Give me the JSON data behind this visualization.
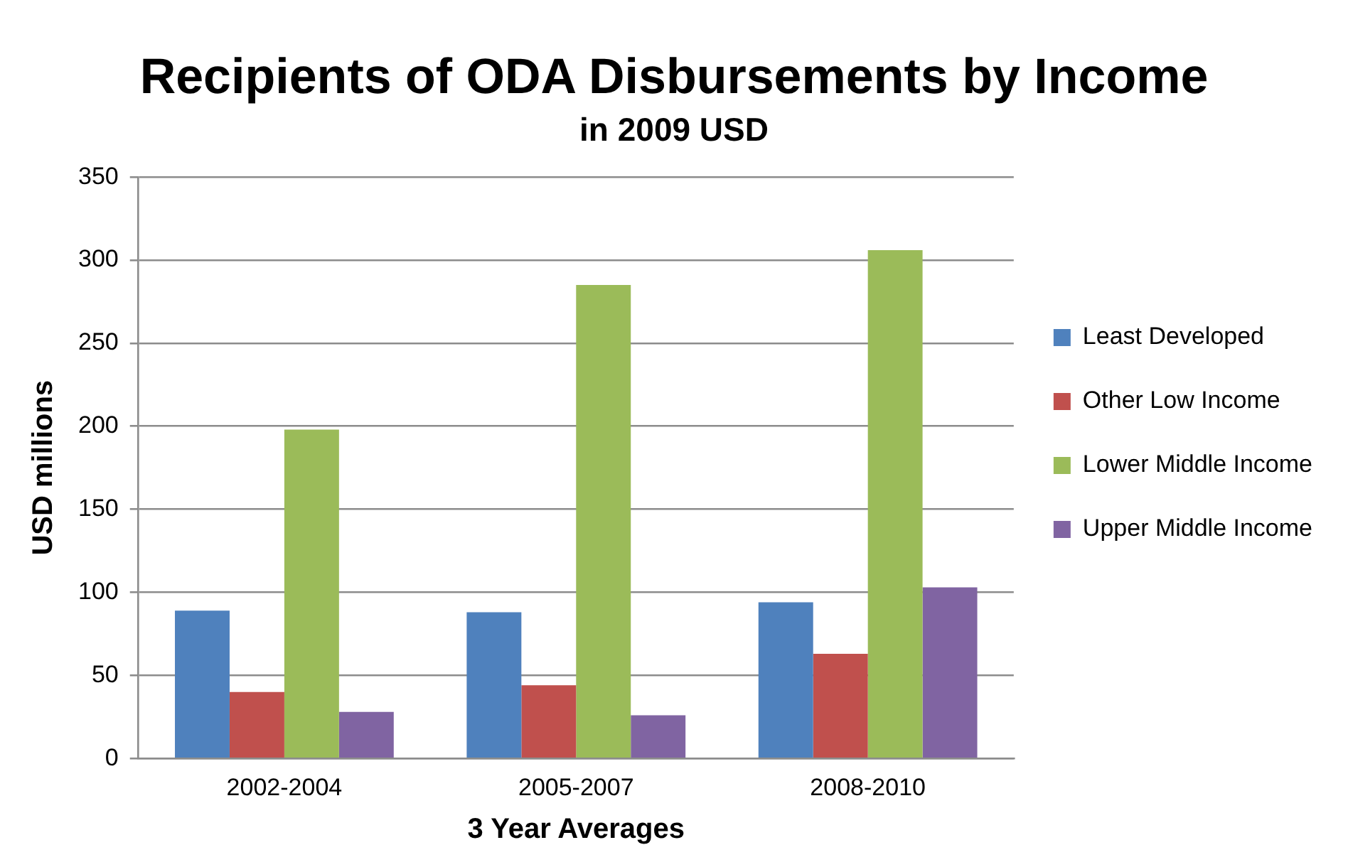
{
  "chart_data": {
    "type": "bar",
    "title": "Recipients of ODA Disbursements by Income",
    "subtitle": "in 2009 USD",
    "xlabel": "3 Year Averages",
    "ylabel": "USD millions",
    "categories": [
      "2002-2004",
      "2005-2007",
      "2008-2010"
    ],
    "series": [
      {
        "name": "Least Developed",
        "color": "#4f81bd",
        "values": [
          89,
          88,
          94
        ]
      },
      {
        "name": "Other Low Income",
        "color": "#c0504d",
        "values": [
          40,
          44,
          63
        ]
      },
      {
        "name": "Lower Middle Income",
        "color": "#9bbb59",
        "values": [
          198,
          285,
          306
        ]
      },
      {
        "name": "Upper Middle Income",
        "color": "#8064a2",
        "values": [
          28,
          26,
          103
        ]
      }
    ],
    "ylim": [
      0,
      350
    ],
    "yticks": [
      0,
      50,
      100,
      150,
      200,
      250,
      300,
      350
    ],
    "grid": "y",
    "legend": "right"
  }
}
